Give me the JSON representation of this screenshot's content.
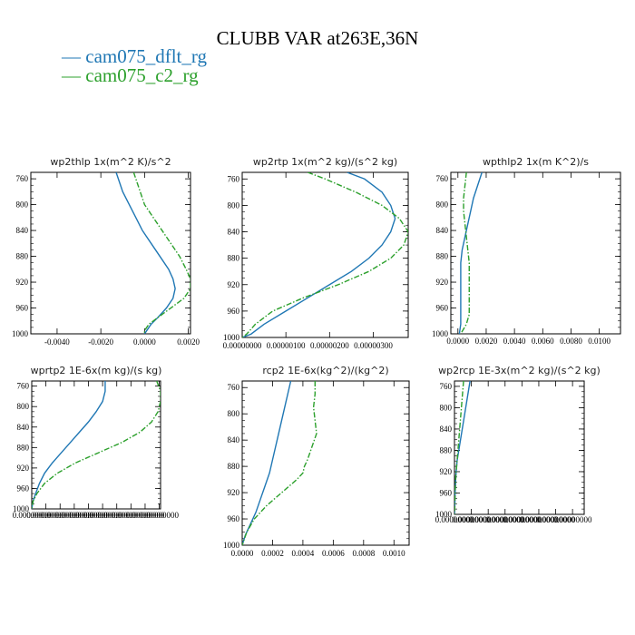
{
  "title": "CLUBB VAR at263E,36N",
  "legend": [
    {
      "name": "cam075_dflt_rg",
      "color": "#1f77b4",
      "dash": "solid"
    },
    {
      "name": "cam075_c2_rg",
      "color": "#2ca02c",
      "dash": "dashdot"
    }
  ],
  "chart_data": [
    {
      "type": "line",
      "title": "wp2thlp   1x(m^2 K)/s^2",
      "xlim": [
        -0.0052,
        0.0021
      ],
      "ylim": [
        1000,
        750
      ],
      "xticks": [
        "-0.0040",
        "-0.0020",
        "0.0000",
        "0.0020"
      ],
      "xtick_values": [
        -0.004,
        -0.002,
        0.0,
        0.002
      ],
      "yticks": [
        "760",
        "800",
        "840",
        "880",
        "920",
        "960",
        "1000"
      ],
      "ytick_values": [
        760,
        800,
        840,
        880,
        920,
        960,
        1000
      ],
      "series": [
        {
          "y": [
            750,
            760,
            780,
            800,
            820,
            840,
            860,
            880,
            900,
            915,
            930,
            945,
            960,
            975,
            985,
            995,
            1000
          ],
          "x": [
            -0.0013,
            -0.0012,
            -0.001,
            -0.0007,
            -0.0004,
            -0.0001,
            0.0003,
            0.0007,
            0.0011,
            0.0013,
            0.0014,
            0.0013,
            0.001,
            0.0006,
            0.0003,
            0.0001,
            0.0
          ]
        },
        {
          "y": [
            750,
            760,
            780,
            800,
            820,
            840,
            860,
            880,
            900,
            915,
            930,
            945,
            960,
            975,
            985,
            995,
            1000
          ],
          "x": [
            -0.0005,
            -0.0004,
            -0.0002,
            0.0,
            0.0004,
            0.0008,
            0.0012,
            0.0016,
            0.0019,
            0.0021,
            0.0021,
            0.0018,
            0.0012,
            0.0006,
            0.0002,
            0.0,
            0.0
          ]
        }
      ]
    },
    {
      "type": "line",
      "title": "wp2rtp   1x(m^2 kg)/(s^2 kg)",
      "xlim": [
        0.0,
        3.8e-06
      ],
      "ylim": [
        1000,
        750
      ],
      "xticks": [
        "0.00000000",
        "0.00000100",
        "0.00000200",
        "0.00000300"
      ],
      "xtick_values": [
        0.0,
        1e-06,
        2e-06,
        3e-06
      ],
      "yticks": [
        "760",
        "800",
        "840",
        "880",
        "920",
        "960",
        "1000"
      ],
      "ytick_values": [
        760,
        800,
        840,
        880,
        920,
        960,
        1000
      ],
      "series": [
        {
          "y": [
            750,
            760,
            780,
            800,
            820,
            840,
            860,
            880,
            900,
            920,
            940,
            960,
            980,
            995,
            1000
          ],
          "x": [
            2.4e-06,
            2.8e-06,
            3.2e-06,
            3.4e-06,
            3.5e-06,
            3.4e-06,
            3.2e-06,
            2.9e-06,
            2.5e-06,
            2e-06,
            1.5e-06,
            1e-06,
            5e-07,
            2e-07,
            0.0
          ]
        },
        {
          "y": [
            750,
            760,
            780,
            800,
            820,
            840,
            860,
            880,
            900,
            920,
            940,
            960,
            980,
            995,
            1000
          ],
          "x": [
            1.5e-06,
            1.9e-06,
            2.6e-06,
            3.2e-06,
            3.6e-06,
            3.8e-06,
            3.7e-06,
            3.4e-06,
            2.9e-06,
            2.2e-06,
            1.4e-06,
            7e-07,
            3e-07,
            1e-07,
            0.0
          ]
        }
      ]
    },
    {
      "type": "line",
      "title": "wpthlp2   1x(m K^2)/s",
      "xlim": [
        -0.0005,
        0.0115
      ],
      "ylim": [
        1000,
        750
      ],
      "xticks": [
        "0.0000",
        "0.0020",
        "0.0040",
        "0.0060",
        "0.0080",
        "0.0100"
      ],
      "xtick_values": [
        0.0,
        0.002,
        0.004,
        0.006,
        0.008,
        0.01
      ],
      "yticks": [
        "760",
        "800",
        "840",
        "880",
        "920",
        "960",
        "1000"
      ],
      "ytick_values": [
        760,
        800,
        840,
        880,
        920,
        960,
        1000
      ],
      "series": [
        {
          "y": [
            750,
            770,
            790,
            810,
            830,
            850,
            870,
            890,
            910,
            930,
            950,
            970,
            985,
            1000
          ],
          "x": [
            0.0017,
            0.0014,
            0.0011,
            0.0009,
            0.0007,
            0.0005,
            0.0003,
            0.0002,
            0.0002,
            0.0002,
            0.0002,
            0.0002,
            0.0002,
            0.0001
          ]
        },
        {
          "y": [
            750,
            770,
            790,
            810,
            830,
            850,
            870,
            890,
            910,
            930,
            950,
            970,
            985,
            1000
          ],
          "x": [
            0.0006,
            0.0005,
            0.0004,
            0.0004,
            0.0005,
            0.0006,
            0.0007,
            0.0008,
            0.0008,
            0.0008,
            0.0008,
            0.0008,
            0.0006,
            0.0002
          ]
        }
      ]
    },
    {
      "type": "line",
      "title": "wprtp2   1E-6x(m kg)/(s kg)",
      "xlim": [
        0.0,
        1.0
      ],
      "ylim": [
        1000,
        750
      ],
      "xticks": [
        "0.00000000",
        "0.00000000",
        "0.00000000",
        "0.00000000",
        "0.00000000",
        "0.00000000",
        "0.00000000",
        "0.00000000",
        "0.00000000",
        "0.00000000"
      ],
      "xtick_values": [
        0.0,
        0.11,
        0.22,
        0.33,
        0.44,
        0.55,
        0.66,
        0.77,
        0.88,
        0.99
      ],
      "yticks": [
        "760",
        "800",
        "840",
        "880",
        "920",
        "960",
        "1000"
      ],
      "ytick_values": [
        760,
        800,
        840,
        880,
        920,
        960,
        1000
      ],
      "series": [
        {
          "y": [
            750,
            770,
            790,
            810,
            830,
            850,
            870,
            890,
            910,
            930,
            950,
            970,
            985,
            1000
          ],
          "x": [
            0.57,
            0.57,
            0.55,
            0.5,
            0.44,
            0.37,
            0.3,
            0.23,
            0.16,
            0.1,
            0.06,
            0.03,
            0.01,
            0.0
          ]
        },
        {
          "y": [
            750,
            770,
            790,
            810,
            830,
            850,
            870,
            890,
            910,
            930,
            950,
            970,
            985,
            1000
          ],
          "x": [
            0.97,
            1.0,
            1.0,
            0.98,
            0.93,
            0.84,
            0.7,
            0.52,
            0.34,
            0.2,
            0.1,
            0.04,
            0.01,
            0.0
          ]
        }
      ]
    },
    {
      "type": "line",
      "title": "rcp2   1E-6x(kg^2)/(kg^2)",
      "xlim": [
        0.0,
        0.0011
      ],
      "ylim": [
        1000,
        750
      ],
      "xticks": [
        "0.0000",
        "0.0002",
        "0.0004",
        "0.0006",
        "0.0008",
        "0.0010"
      ],
      "xtick_values": [
        0.0,
        0.0002,
        0.0004,
        0.0006,
        0.0008,
        0.001
      ],
      "yticks": [
        "760",
        "800",
        "840",
        "880",
        "920",
        "960",
        "1000"
      ],
      "ytick_values": [
        760,
        800,
        840,
        880,
        920,
        960,
        1000
      ],
      "series": [
        {
          "y": [
            750,
            770,
            790,
            810,
            830,
            850,
            870,
            890,
            910,
            930,
            950,
            970,
            985,
            1000
          ],
          "x": [
            0.00032,
            0.0003,
            0.00028,
            0.00026,
            0.00024,
            0.00022,
            0.0002,
            0.00018,
            0.00015,
            0.00012,
            9e-05,
            5e-05,
            2e-05,
            0.0
          ]
        },
        {
          "y": [
            750,
            770,
            790,
            810,
            830,
            850,
            870,
            880,
            890,
            900,
            920,
            940,
            960,
            980,
            1000
          ],
          "x": [
            0.00048,
            0.00048,
            0.00047,
            0.00048,
            0.00049,
            0.00046,
            0.00043,
            0.00041,
            0.0004,
            0.00036,
            0.00026,
            0.00016,
            8e-05,
            3e-05,
            0.0
          ]
        }
      ]
    },
    {
      "type": "line",
      "title": "wp2rcp   1E-3x(m^2 kg)/(s^2 kg)",
      "xlim": [
        0.0,
        1.0
      ],
      "ylim": [
        1000,
        750
      ],
      "xticks": [
        "0.00000000",
        "0.00000000",
        "0.00000000",
        "0.00000000",
        "0.00000000",
        "0.00000000",
        "0.00000000",
        "0.00000000"
      ],
      "xtick_values": [
        0.0,
        0.13,
        0.26,
        0.39,
        0.52,
        0.65,
        0.78,
        0.91
      ],
      "yticks": [
        "760",
        "800",
        "840",
        "880",
        "920",
        "960",
        "1000"
      ],
      "ytick_values": [
        760,
        800,
        840,
        880,
        920,
        960,
        1000
      ],
      "series": [
        {
          "y": [
            750,
            780,
            810,
            840,
            870,
            900,
            930,
            960,
            990,
            1000
          ],
          "x": [
            0.12,
            0.1,
            0.08,
            0.06,
            0.04,
            0.02,
            0.01,
            0.005,
            0.002,
            0.0
          ]
        },
        {
          "y": [
            750,
            780,
            810,
            840,
            870,
            900,
            930,
            960,
            990,
            1000
          ],
          "x": [
            0.07,
            0.06,
            0.05,
            0.04,
            0.03,
            0.02,
            0.01,
            0.005,
            0.002,
            0.0
          ]
        }
      ]
    }
  ]
}
